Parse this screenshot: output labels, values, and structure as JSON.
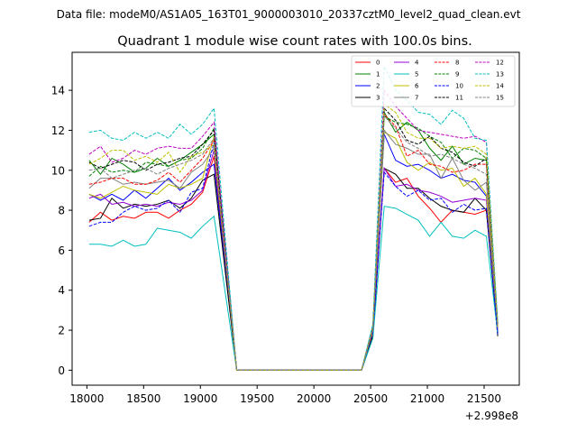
{
  "header": {
    "suptitle": "Data file: modeM0/AS1A05_163T01_9000003010_20337cztM0_level2_quad_clean.evt"
  },
  "chart_data": {
    "type": "line",
    "title": "Quadrant 1 module wise count rates with 100.0s bins.",
    "xlabel": "",
    "ylabel": "",
    "x_offset_label": "+2.998e8",
    "xlim": [
      17870,
      21810
    ],
    "ylim": [
      -0.75,
      15.9
    ],
    "x_ticks": [
      18000,
      18500,
      19000,
      19500,
      20000,
      20500,
      21000,
      21500
    ],
    "x_tick_labels": [
      "18000",
      "18500",
      "19000",
      "19500",
      "20000",
      "20500",
      "21000",
      "21500"
    ],
    "y_ticks": [
      0,
      2,
      4,
      6,
      8,
      10,
      12,
      14
    ],
    "y_tick_labels": [
      "0",
      "2",
      "4",
      "6",
      "8",
      "10",
      "12",
      "14"
    ],
    "grid": false,
    "legend_placement": "upper-right",
    "legend_columns": 4,
    "x": [
      18020,
      18120,
      18220,
      18320,
      18420,
      18520,
      18620,
      18720,
      18820,
      18920,
      19020,
      19120,
      19320,
      19420,
      19520,
      19620,
      19720,
      19820,
      19920,
      20020,
      20120,
      20220,
      20320,
      20420,
      20520,
      20620,
      20720,
      20820,
      20920,
      21020,
      21120,
      21220,
      21320,
      21420,
      21520,
      21620
    ],
    "series": [
      {
        "name": "0",
        "color": "#ff0000",
        "dash": "solid",
        "values": [
          7.4,
          7.9,
          7.5,
          7.7,
          7.6,
          7.9,
          7.9,
          7.6,
          8.0,
          8.3,
          8.9,
          10.7,
          0,
          0,
          0,
          0,
          0,
          0,
          0,
          0,
          0,
          0,
          0,
          0,
          1.8,
          10.1,
          9.4,
          9.6,
          8.7,
          8.1,
          7.4,
          8.0,
          7.9,
          7.8,
          8.0,
          1.9
        ]
      },
      {
        "name": "1",
        "color": "#008000",
        "dash": "solid",
        "values": [
          10.5,
          9.8,
          10.6,
          10.3,
          9.9,
          10.1,
          10.6,
          10.2,
          10.5,
          10.9,
          11.3,
          11.8,
          0,
          0,
          0,
          0,
          0,
          0,
          0,
          0,
          0,
          0,
          0,
          0,
          2.2,
          12.9,
          11.9,
          12.4,
          12.0,
          11.1,
          10.5,
          11.2,
          10.3,
          10.6,
          10.5,
          2.2
        ]
      },
      {
        "name": "2",
        "color": "#0000ff",
        "dash": "solid",
        "values": [
          8.8,
          8.5,
          8.8,
          8.5,
          9.0,
          8.6,
          9.1,
          9.6,
          9.0,
          9.4,
          9.9,
          10.3,
          0,
          0,
          0,
          0,
          0,
          0,
          0,
          0,
          0,
          0,
          0,
          0,
          2.1,
          11.8,
          10.5,
          10.2,
          10.3,
          10.0,
          9.6,
          9.8,
          9.5,
          9.4,
          8.7,
          1.9
        ]
      },
      {
        "name": "3",
        "color": "#000000",
        "dash": "solid",
        "values": [
          7.5,
          7.6,
          8.6,
          8.1,
          8.3,
          8.2,
          8.3,
          8.5,
          8.1,
          8.6,
          9.5,
          9.8,
          0,
          0,
          0,
          0,
          0,
          0,
          0,
          0,
          0,
          0,
          0,
          0,
          1.7,
          10.1,
          9.8,
          9.1,
          9.1,
          8.6,
          8.2,
          8.0,
          7.9,
          8.6,
          8.0,
          1.7
        ]
      },
      {
        "name": "4",
        "color": "#9400d3",
        "dash": "solid",
        "values": [
          8.6,
          8.8,
          8.3,
          8.4,
          8.2,
          8.3,
          8.2,
          8.4,
          8.3,
          8.5,
          9.0,
          11.0,
          0,
          0,
          0,
          0,
          0,
          0,
          0,
          0,
          0,
          0,
          0,
          0,
          2.0,
          10.1,
          9.2,
          9.3,
          9.0,
          8.9,
          8.7,
          8.4,
          8.5,
          8.6,
          8.5,
          2.0
        ]
      },
      {
        "name": "5",
        "color": "#00bfbf",
        "dash": "solid",
        "values": [
          6.3,
          6.3,
          6.2,
          6.5,
          6.2,
          6.3,
          7.1,
          7.0,
          6.9,
          6.6,
          7.2,
          7.7,
          0,
          0,
          0,
          0,
          0,
          0,
          0,
          0,
          0,
          0,
          0,
          0,
          1.6,
          8.2,
          8.1,
          7.8,
          7.5,
          6.7,
          7.4,
          6.7,
          6.6,
          7.0,
          6.7,
          1.8
        ]
      },
      {
        "name": "6",
        "color": "#bfbf00",
        "dash": "solid",
        "values": [
          8.8,
          8.6,
          8.9,
          9.2,
          9.0,
          8.9,
          8.8,
          9.3,
          9.1,
          9.3,
          9.6,
          11.7,
          0,
          0,
          0,
          0,
          0,
          0,
          0,
          0,
          0,
          0,
          0,
          0,
          2.0,
          11.9,
          11.6,
          10.4,
          10.0,
          10.4,
          10.0,
          10.1,
          9.2,
          9.6,
          8.8,
          2.1
        ]
      },
      {
        "name": "7",
        "color": "#808080",
        "dash": "solid",
        "values": [
          9.1,
          9.6,
          9.6,
          9.3,
          9.4,
          9.3,
          9.4,
          9.5,
          9.1,
          9.9,
          10.3,
          11.1,
          0,
          0,
          0,
          0,
          0,
          0,
          0,
          0,
          0,
          0,
          0,
          0,
          2.1,
          12.0,
          11.3,
          11.1,
          10.8,
          10.8,
          9.6,
          10.6,
          9.5,
          9.0,
          9.4,
          2.0
        ]
      },
      {
        "name": "8",
        "color": "#ff0000",
        "dash": "dashed",
        "values": [
          9.3,
          9.4,
          9.6,
          9.6,
          9.3,
          9.3,
          9.5,
          9.9,
          9.4,
          10.0,
          10.6,
          11.5,
          0,
          0,
          0,
          0,
          0,
          0,
          0,
          0,
          0,
          0,
          0,
          0,
          2.1,
          12.8,
          12.2,
          10.7,
          11.0,
          10.3,
          10.2,
          9.9,
          10.0,
          10.3,
          10.3,
          2.2
        ]
      },
      {
        "name": "9",
        "color": "#008000",
        "dash": "dashed",
        "values": [
          9.7,
          10.2,
          9.9,
          10.0,
          9.9,
          10.4,
          10.3,
          10.2,
          10.5,
          10.6,
          11.1,
          12.1,
          0,
          0,
          0,
          0,
          0,
          0,
          0,
          0,
          0,
          0,
          0,
          0,
          2.2,
          12.7,
          12.4,
          12.3,
          12.1,
          11.7,
          11.4,
          10.6,
          11.1,
          11.0,
          10.6,
          2.3
        ]
      },
      {
        "name": "10",
        "color": "#0000ff",
        "dash": "dashed",
        "values": [
          7.2,
          7.4,
          7.4,
          7.9,
          8.2,
          8.0,
          8.1,
          8.5,
          7.9,
          8.9,
          9.1,
          11.4,
          0,
          0,
          0,
          0,
          0,
          0,
          0,
          0,
          0,
          0,
          0,
          0,
          1.9,
          9.9,
          9.2,
          8.7,
          9.0,
          8.5,
          8.6,
          7.9,
          8.3,
          8.0,
          8.1,
          1.8
        ]
      },
      {
        "name": "11",
        "color": "#000000",
        "dash": "dashed",
        "values": [
          10.4,
          10.1,
          10.3,
          10.5,
          10.4,
          10.0,
          10.3,
          10.4,
          10.6,
          10.7,
          11.3,
          12.0,
          0,
          0,
          0,
          0,
          0,
          0,
          0,
          0,
          0,
          0,
          0,
          0,
          2.1,
          13.1,
          12.5,
          11.5,
          11.3,
          11.7,
          11.1,
          10.9,
          10.4,
          10.2,
          10.6,
          2.3
        ]
      },
      {
        "name": "12",
        "color": "#c000c0",
        "dash": "dashed",
        "values": [
          10.8,
          11.2,
          10.4,
          10.6,
          11.0,
          10.8,
          11.1,
          11.2,
          11.1,
          11.1,
          11.7,
          12.4,
          0,
          0,
          0,
          0,
          0,
          0,
          0,
          0,
          0,
          0,
          0,
          0,
          2.2,
          14.0,
          13.2,
          12.6,
          12.0,
          11.9,
          11.8,
          11.7,
          11.6,
          11.7,
          11.4,
          2.3
        ]
      },
      {
        "name": "13",
        "color": "#00bfbf",
        "dash": "dashed",
        "values": [
          11.9,
          12.0,
          11.6,
          11.5,
          11.9,
          11.6,
          11.9,
          11.6,
          12.3,
          11.8,
          12.3,
          13.1,
          0,
          0,
          0,
          0,
          0,
          0,
          0,
          0,
          0,
          0,
          0,
          0,
          2.3,
          15.2,
          14.0,
          13.5,
          12.9,
          12.8,
          12.3,
          13.0,
          12.6,
          11.6,
          11.5,
          2.4
        ]
      },
      {
        "name": "14",
        "color": "#bfbf00",
        "dash": "dashed",
        "values": [
          10.3,
          10.6,
          11.0,
          11.0,
          10.5,
          10.7,
          10.4,
          10.9,
          9.9,
          10.7,
          10.9,
          11.3,
          0,
          0,
          0,
          0,
          0,
          0,
          0,
          0,
          0,
          0,
          0,
          0,
          2.1,
          13.3,
          12.9,
          11.9,
          11.6,
          11.6,
          11.1,
          11.2,
          11.1,
          11.2,
          10.8,
          2.2
        ]
      },
      {
        "name": "15",
        "color": "#808080",
        "dash": "dashed",
        "values": [
          10.0,
          10.1,
          9.6,
          9.8,
          10.0,
          10.1,
          9.8,
          10.1,
          10.3,
          10.5,
          10.8,
          11.6,
          0,
          0,
          0,
          0,
          0,
          0,
          0,
          0,
          0,
          0,
          0,
          0,
          2.0,
          12.7,
          12.1,
          11.4,
          11.1,
          10.7,
          10.8,
          10.6,
          10.3,
          10.1,
          9.8,
          2.1
        ]
      }
    ]
  }
}
